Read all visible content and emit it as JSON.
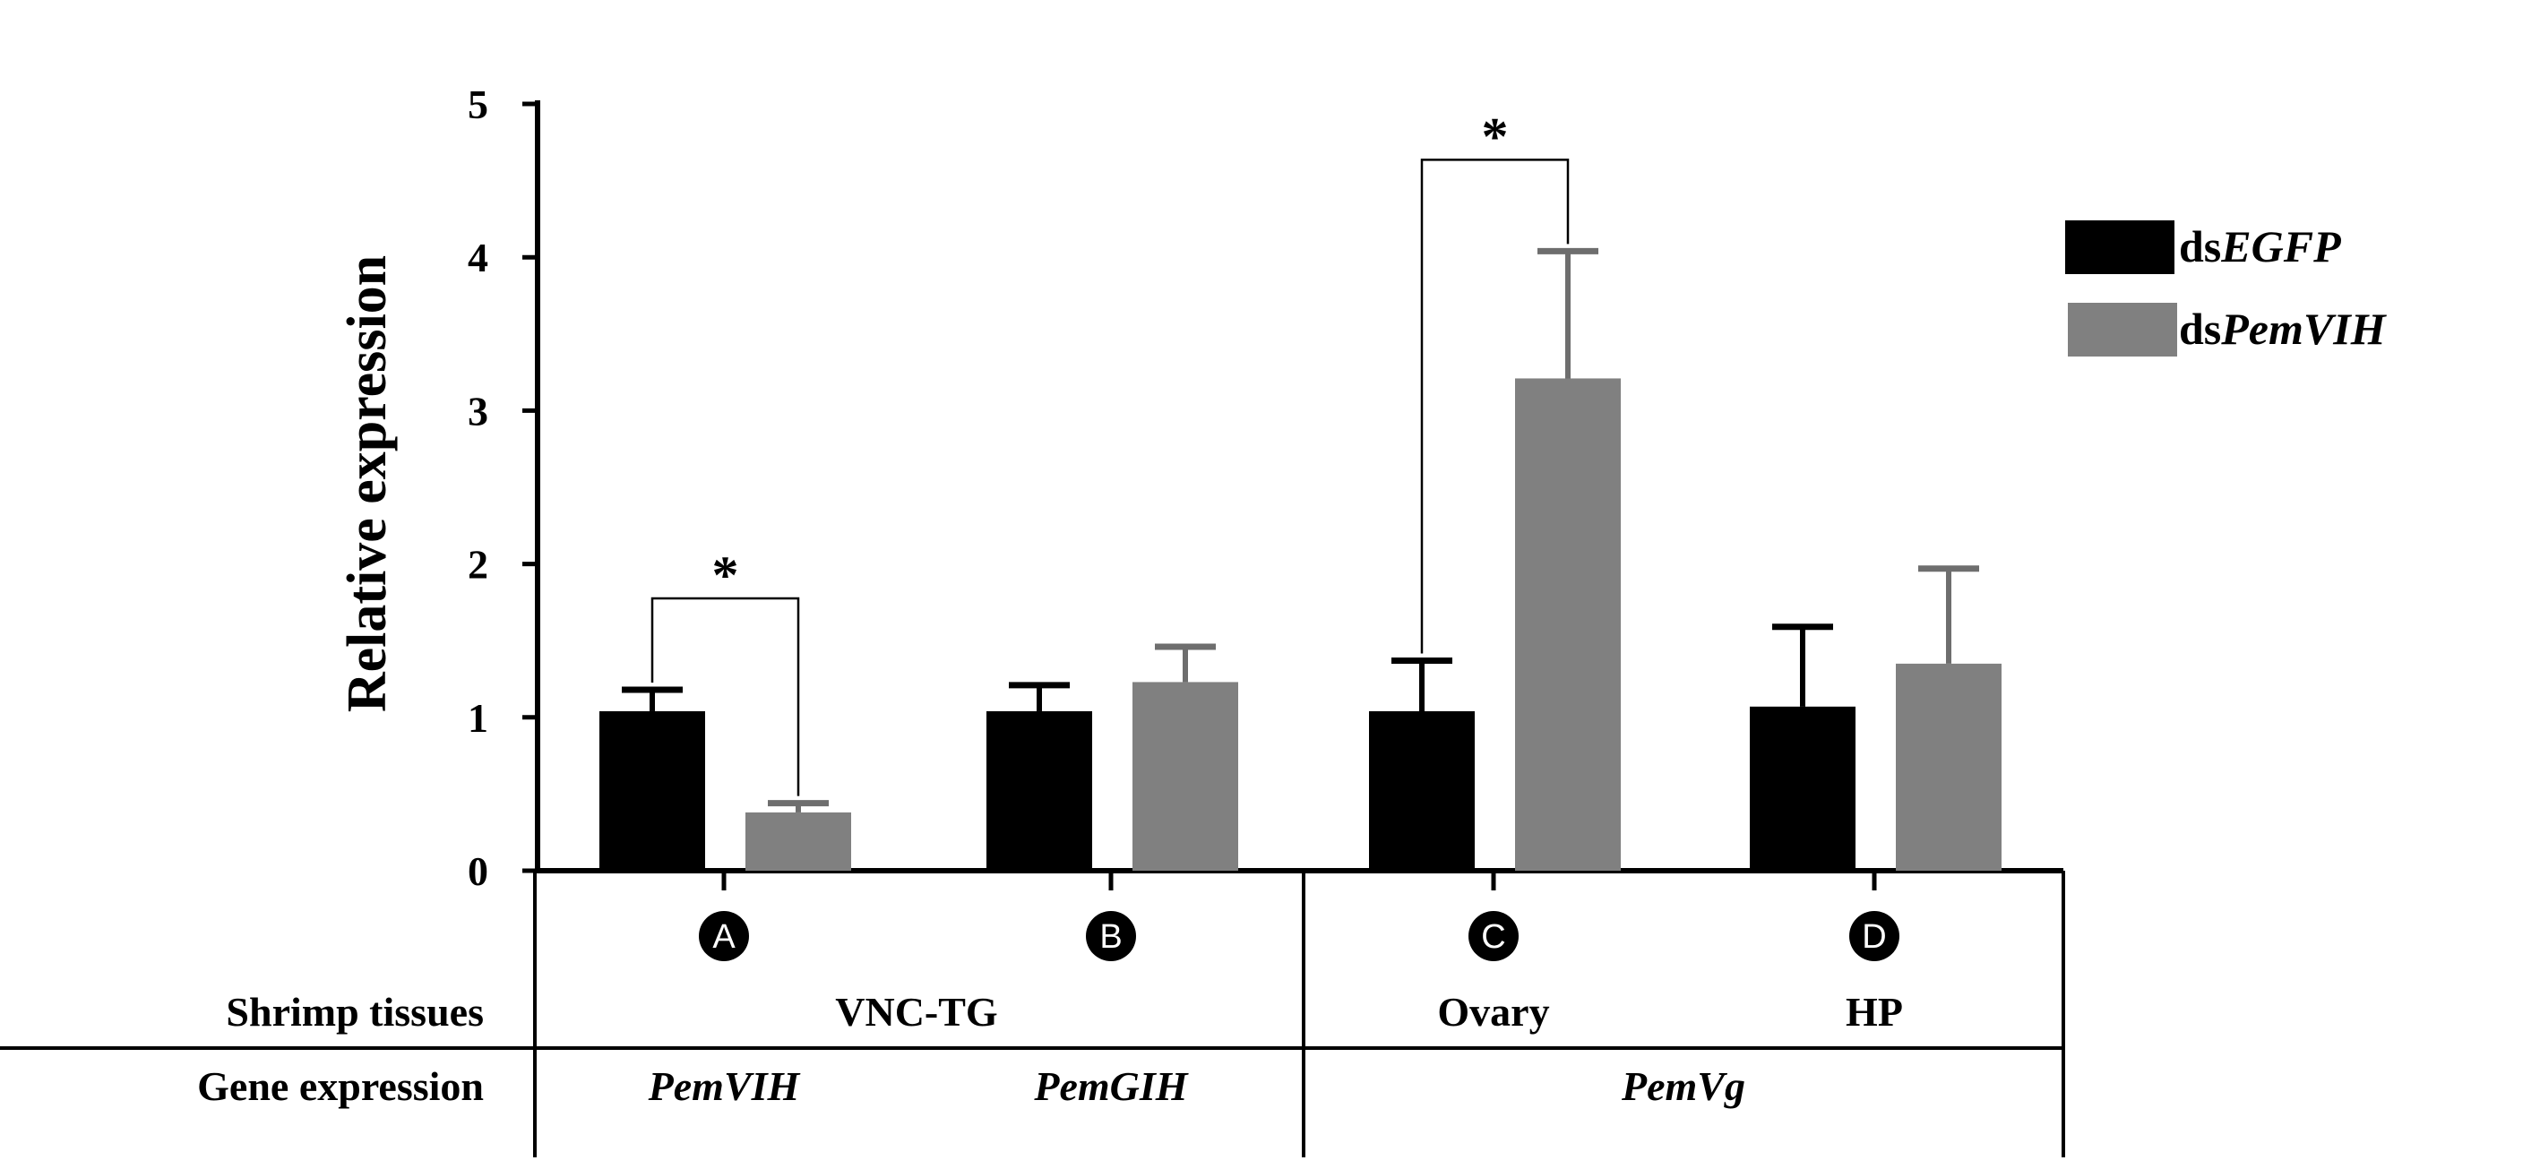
{
  "chart_data": {
    "type": "bar",
    "ylabel": "Relative expression",
    "ylim": [
      0,
      5
    ],
    "yticks": [
      0,
      1,
      2,
      3,
      4,
      5
    ],
    "categories": [
      "A",
      "B",
      "C",
      "D"
    ],
    "series": [
      {
        "name": "dsEGFP",
        "name_prefix": "ds",
        "name_italic": "EGFP",
        "color": "#000000",
        "values": [
          1.04,
          1.04,
          1.04,
          1.07
        ],
        "errors": [
          0.14,
          0.17,
          0.33,
          0.52
        ]
      },
      {
        "name": "dsPemVIH",
        "name_prefix": "ds",
        "name_italic": "PemVIH",
        "color": "#808080",
        "values": [
          0.38,
          1.23,
          3.21,
          1.35
        ],
        "errors": [
          0.06,
          0.23,
          0.83,
          0.62
        ]
      }
    ],
    "significance": [
      {
        "category": "A",
        "label": "*"
      },
      {
        "category": "C",
        "label": "*"
      }
    ],
    "legend_position": "top-right"
  },
  "table": {
    "tissue_header": "Shrimp tissues",
    "gene_header": "Gene expression",
    "tissues": [
      "VNC-TG",
      "Ovary",
      "HP"
    ],
    "genes": [
      "PemVIH",
      "PemGIH",
      "PemVg"
    ]
  }
}
